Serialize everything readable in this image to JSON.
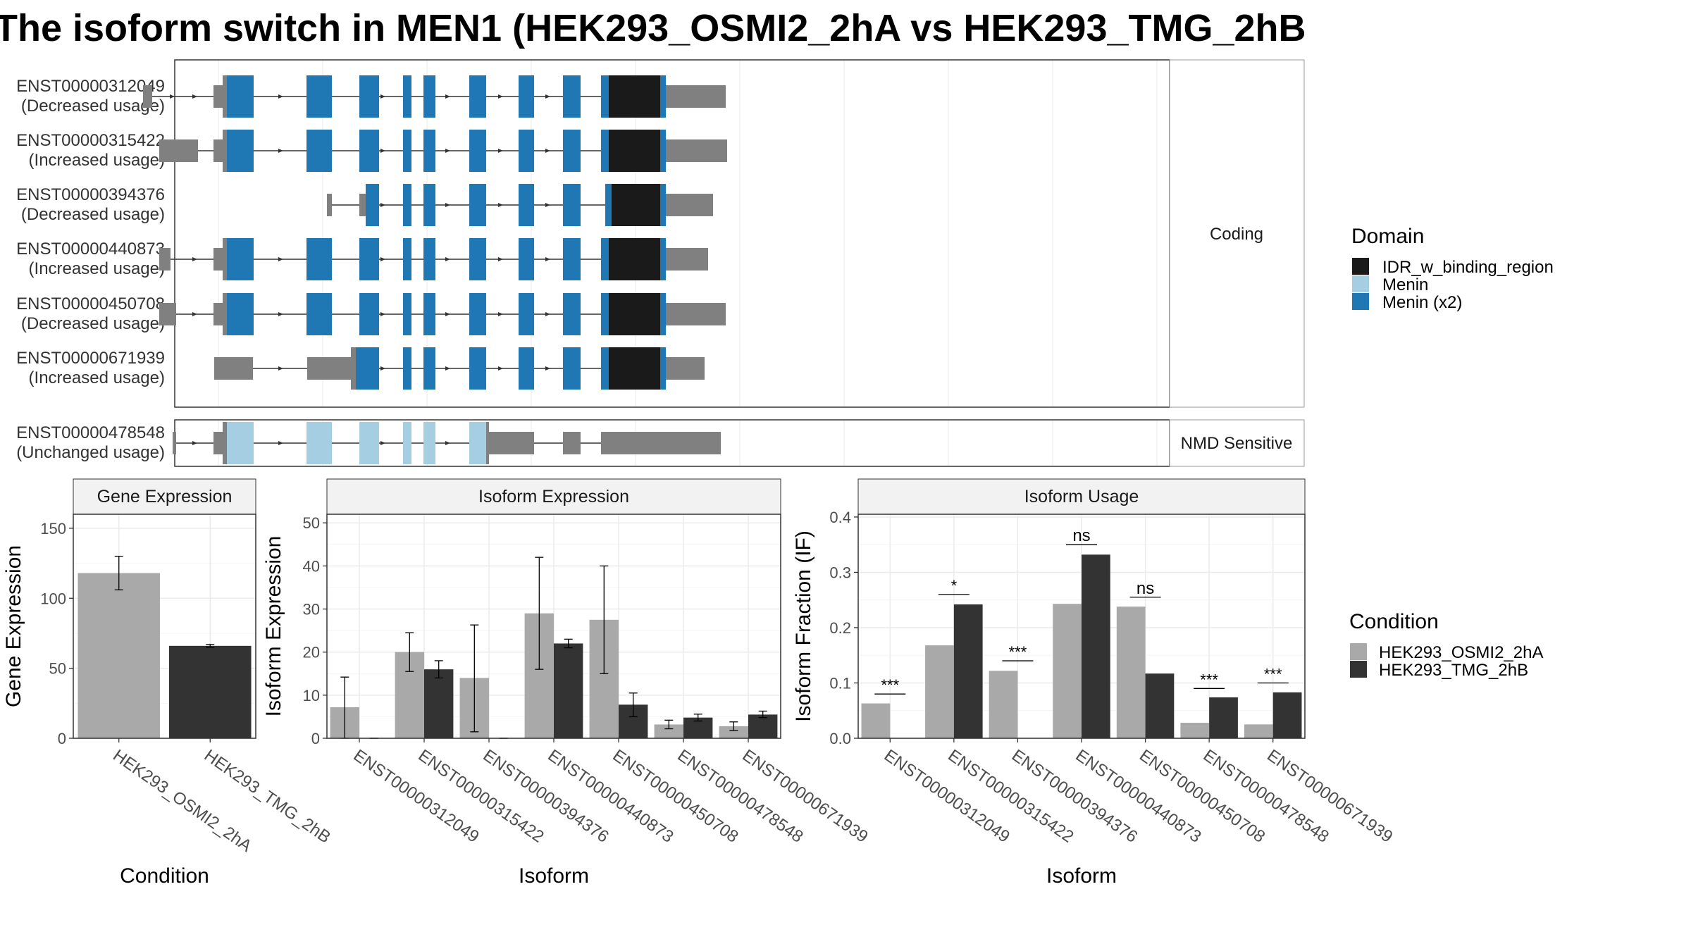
{
  "title": "The isoform switch in MEN1 (HEK293_OSMI2_2hA vs HEK293_TMG_2hB",
  "colors": {
    "idr": "#1a1a1a",
    "menin": "#a6cee3",
    "menin_x2": "#1f78b4",
    "utr": "#808080",
    "osmi": "#a9a9a9",
    "tmg": "#333333",
    "facet_strip": "#f2f2f2",
    "grid": "#ebebeb"
  },
  "transcripts": {
    "coding_facet_label": "Coding",
    "nmd_facet_label": "NMD Sensitive",
    "rows": [
      {
        "id": "ENST00000312049",
        "status": "(Decreased usage)",
        "group": "coding"
      },
      {
        "id": "ENST00000315422",
        "status": "(Increased usage)",
        "group": "coding"
      },
      {
        "id": "ENST00000394376",
        "status": "(Decreased usage)",
        "group": "coding"
      },
      {
        "id": "ENST00000440873",
        "status": "(Increased usage)",
        "group": "coding"
      },
      {
        "id": "ENST00000450708",
        "status": "(Decreased usage)",
        "group": "coding"
      },
      {
        "id": "ENST00000671939",
        "status": "(Increased usage)",
        "group": "coding"
      },
      {
        "id": "ENST00000478548",
        "status": "(Unchanged usage)",
        "group": "nmd"
      }
    ]
  },
  "domain_legend": {
    "title": "Domain",
    "items": [
      {
        "label": "IDR_w_binding_region",
        "color": "#1a1a1a"
      },
      {
        "label": "Menin",
        "color": "#a6cee3"
      },
      {
        "label": "Menin (x2)",
        "color": "#1f78b4"
      }
    ]
  },
  "condition_legend": {
    "title": "Condition",
    "items": [
      {
        "label": "HEK293_OSMI2_2hA",
        "color": "#a9a9a9"
      },
      {
        "label": "HEK293_TMG_2hB",
        "color": "#333333"
      }
    ]
  },
  "chart_data": [
    {
      "type": "bar",
      "title": "Gene Expression",
      "xlabel": "Condition",
      "ylabel": "Gene Expression",
      "categories": [
        "HEK293_OSMI2_2hA",
        "HEK293_TMG_2hB"
      ],
      "values": [
        118,
        66
      ],
      "error_low": [
        106,
        65
      ],
      "error_high": [
        130,
        67
      ],
      "ylim": [
        0,
        160
      ],
      "yticks": [
        0,
        50,
        100,
        150
      ]
    },
    {
      "type": "bar",
      "title": "Isoform Expression",
      "xlabel": "Isoform",
      "ylabel": "Isoform Expression",
      "categories": [
        "ENST00000312049",
        "ENST00000315422",
        "ENST00000394376",
        "ENST00000440873",
        "ENST00000450708",
        "ENST00000478548",
        "ENST00000671939"
      ],
      "series": [
        {
          "name": "HEK293_OSMI2_2hA",
          "values": [
            7.2,
            20,
            14,
            29,
            27.5,
            3.2,
            2.8
          ],
          "error_low": [
            0,
            15.5,
            1.5,
            16,
            15,
            2.2,
            1.8
          ],
          "error_high": [
            14.2,
            24.5,
            26.3,
            42,
            40,
            4.2,
            3.8
          ]
        },
        {
          "name": "HEK293_TMG_2hB",
          "values": [
            0,
            16,
            0,
            22,
            7.8,
            4.8,
            5.5
          ],
          "error_low": [
            0,
            14,
            0,
            21,
            5,
            4,
            4.8
          ],
          "error_high": [
            0,
            18,
            0,
            23,
            10.5,
            5.6,
            6.3
          ]
        }
      ],
      "ylim": [
        0,
        52
      ],
      "yticks": [
        0,
        10,
        20,
        30,
        40,
        50
      ]
    },
    {
      "type": "bar",
      "title": "Isoform Usage",
      "xlabel": "Isoform",
      "ylabel": "Isoform Fraction (IF)",
      "categories": [
        "ENST00000312049",
        "ENST00000315422",
        "ENST00000394376",
        "ENST00000440873",
        "ENST00000450708",
        "ENST00000478548",
        "ENST00000671939"
      ],
      "series": [
        {
          "name": "HEK293_OSMI2_2hA",
          "values": [
            0.063,
            0.168,
            0.122,
            0.243,
            0.238,
            0.028,
            0.025
          ]
        },
        {
          "name": "HEK293_TMG_2hB",
          "values": [
            0,
            0.242,
            0,
            0.332,
            0.117,
            0.074,
            0.083
          ]
        }
      ],
      "significance": [
        "***",
        "*",
        "***",
        "ns",
        "ns",
        "***",
        "***"
      ],
      "sig_line_y": [
        0.08,
        0.26,
        0.14,
        0.35,
        0.255,
        0.09,
        0.1
      ],
      "ylim": [
        0,
        0.405
      ],
      "yticks": [
        0.0,
        0.1,
        0.2,
        0.3,
        0.4
      ],
      "ytick_labels": [
        "0.0",
        "0.1",
        "0.2",
        "0.3",
        "0.4"
      ]
    }
  ]
}
